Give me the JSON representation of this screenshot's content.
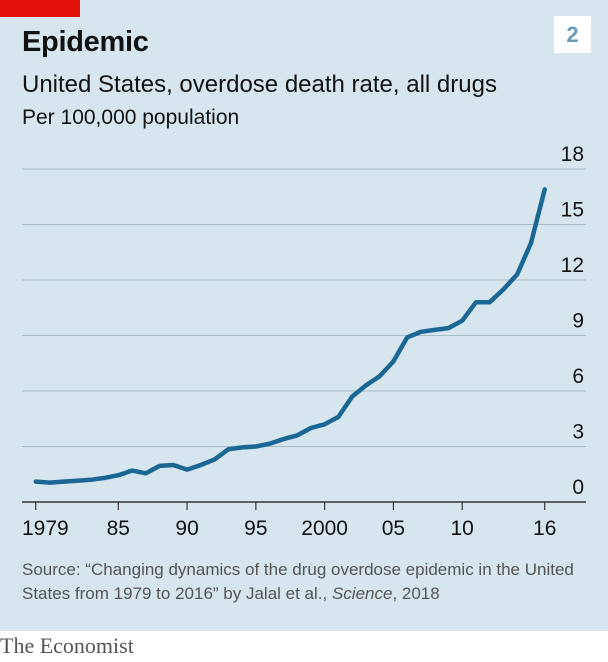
{
  "header": {
    "title": "Epidemic",
    "chart_number": "2",
    "subtitle": "United States, overdose death rate, all drugs",
    "unit": "Per 100,000 population"
  },
  "source": {
    "prefix": "Source: “Changing dynamics of the drug overdose epidemic in the United States from 1979 to 2016” by Jalal et al., ",
    "journal": "Science",
    "suffix": ", 2018"
  },
  "brand": "The Economist",
  "colors": {
    "background": "#d6e5ee",
    "line": "#1a6796",
    "accent_tag": "#e3120b"
  },
  "chart_data": {
    "type": "line",
    "title": "Epidemic",
    "subtitle": "United States, overdose death rate, all drugs",
    "ylabel": "Per 100,000 population",
    "ylim": [
      0,
      18
    ],
    "xlim": [
      1978,
      2019
    ],
    "y_ticks": [
      0,
      3,
      6,
      9,
      12,
      15,
      18
    ],
    "y_tick_labels": [
      "0",
      "3",
      "6",
      "9",
      "12",
      "15",
      "18"
    ],
    "y_axis_side": "right",
    "x_ticks": [
      1979,
      1985,
      1990,
      1995,
      2000,
      2005,
      2010,
      2016
    ],
    "x_tick_labels": [
      "1979",
      "85",
      "90",
      "95",
      "2000",
      "05",
      "10",
      "16"
    ],
    "grid": true,
    "series": [
      {
        "x": [
          1979,
          1980,
          1981,
          1982,
          1983,
          1984,
          1985,
          1986,
          1987,
          1988,
          1989,
          1990,
          1991,
          1992,
          1993,
          1994,
          1995,
          1996,
          1997,
          1998,
          1999,
          2000,
          2001,
          2002,
          2003,
          2004,
          2005,
          2006,
          2007,
          2008,
          2009,
          2010,
          2011,
          2012,
          2013,
          2014,
          2015,
          2016
        ],
        "values": [
          1.1,
          1.05,
          1.1,
          1.15,
          1.2,
          1.3,
          1.45,
          1.7,
          1.55,
          1.95,
          2.0,
          1.75,
          2.0,
          2.3,
          2.85,
          2.95,
          3.0,
          3.15,
          3.4,
          3.6,
          4.0,
          4.2,
          4.6,
          5.7,
          6.3,
          6.8,
          7.6,
          8.9,
          9.2,
          9.3,
          9.4,
          9.8,
          10.8,
          10.8,
          11.5,
          12.3,
          14.0,
          16.9
        ]
      }
    ]
  }
}
